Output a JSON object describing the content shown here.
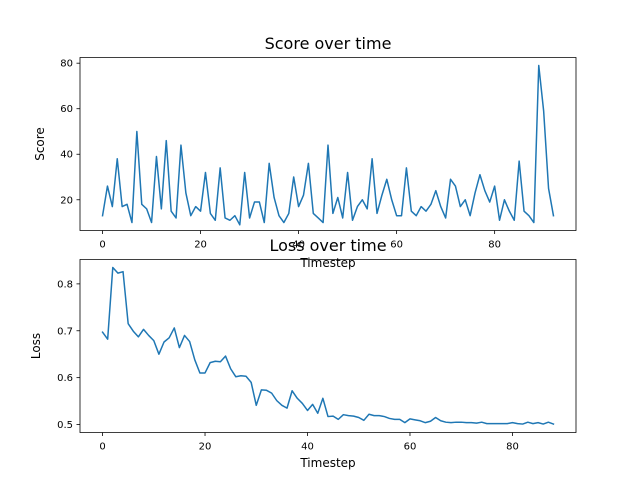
{
  "chart_data": [
    {
      "type": "line",
      "title": "Score over time",
      "xlabel": "Timestep",
      "ylabel": "Score",
      "xlim": [
        -4.6,
        96.6
      ],
      "ylim": [
        6.5,
        82.5
      ],
      "xticks": [
        0,
        20,
        40,
        60,
        80
      ],
      "yticks": [
        20,
        40,
        60,
        80
      ],
      "grid": false,
      "series": [
        {
          "color": "#1f77b4",
          "x": [
            0,
            1,
            2,
            3,
            4,
            5,
            6,
            7,
            8,
            9,
            10,
            11,
            12,
            13,
            14,
            15,
            16,
            17,
            18,
            19,
            20,
            21,
            22,
            23,
            24,
            25,
            26,
            27,
            28,
            29,
            30,
            31,
            32,
            33,
            34,
            35,
            36,
            37,
            38,
            39,
            40,
            41,
            42,
            43,
            44,
            45,
            46,
            47,
            48,
            49,
            50,
            51,
            52,
            53,
            54,
            55,
            56,
            57,
            58,
            59,
            60,
            61,
            62,
            63,
            64,
            65,
            66,
            67,
            68,
            69,
            70,
            71,
            72,
            73,
            74,
            75,
            76,
            77,
            78,
            79,
            80,
            81,
            82,
            83,
            84,
            85,
            86,
            87,
            88,
            89,
            90,
            91,
            92
          ],
          "y": [
            13,
            26,
            17,
            38,
            17,
            18,
            10,
            50,
            18,
            16,
            10,
            39,
            16,
            46,
            15,
            12,
            44,
            23,
            13,
            17,
            15,
            32,
            14,
            11,
            34,
            12,
            11,
            13,
            9,
            32,
            12,
            19,
            19,
            10,
            36,
            21,
            13,
            10,
            14,
            30,
            17,
            22,
            36,
            14,
            12,
            10,
            44,
            14,
            21,
            12,
            32,
            11,
            17,
            20,
            16,
            38,
            14,
            22,
            29,
            20,
            13,
            13,
            34,
            15,
            13,
            17,
            15,
            18,
            24,
            17,
            12,
            29,
            26,
            17,
            20,
            13,
            23,
            31,
            24,
            19,
            26,
            11,
            20,
            15,
            11,
            37,
            15,
            13,
            10,
            79,
            59,
            25,
            13
          ]
        }
      ]
    },
    {
      "type": "line",
      "title": "Loss over time",
      "xlabel": "Timestep",
      "ylabel": "Loss",
      "xlim": [
        -4.4,
        92.4
      ],
      "ylim": [
        0.483,
        0.852
      ],
      "xticks": [
        0,
        20,
        40,
        60,
        80
      ],
      "yticks": [
        0.5,
        0.6,
        0.7,
        0.8
      ],
      "grid": false,
      "series": [
        {
          "color": "#1f77b4",
          "x": [
            0,
            1,
            2,
            3,
            4,
            5,
            6,
            7,
            8,
            9,
            10,
            11,
            12,
            13,
            14,
            15,
            16,
            17,
            18,
            19,
            20,
            21,
            22,
            23,
            24,
            25,
            26,
            27,
            28,
            29,
            30,
            31,
            32,
            33,
            34,
            35,
            36,
            37,
            38,
            39,
            40,
            41,
            42,
            43,
            44,
            45,
            46,
            47,
            48,
            49,
            50,
            51,
            52,
            53,
            54,
            55,
            56,
            57,
            58,
            59,
            60,
            61,
            62,
            63,
            64,
            65,
            66,
            67,
            68,
            69,
            70,
            71,
            72,
            73,
            74,
            75,
            76,
            77,
            78,
            79,
            80,
            81,
            82,
            83,
            84,
            85,
            86,
            87,
            88
          ],
          "y": [
            0.697,
            0.682,
            0.835,
            0.823,
            0.826,
            0.715,
            0.699,
            0.687,
            0.703,
            0.69,
            0.679,
            0.65,
            0.676,
            0.685,
            0.706,
            0.664,
            0.69,
            0.677,
            0.638,
            0.61,
            0.61,
            0.632,
            0.635,
            0.634,
            0.646,
            0.619,
            0.602,
            0.604,
            0.603,
            0.59,
            0.541,
            0.574,
            0.573,
            0.567,
            0.551,
            0.541,
            0.535,
            0.572,
            0.556,
            0.545,
            0.53,
            0.543,
            0.524,
            0.556,
            0.517,
            0.518,
            0.511,
            0.521,
            0.519,
            0.518,
            0.515,
            0.509,
            0.522,
            0.519,
            0.519,
            0.517,
            0.513,
            0.511,
            0.511,
            0.504,
            0.512,
            0.51,
            0.508,
            0.504,
            0.507,
            0.515,
            0.508,
            0.505,
            0.504,
            0.505,
            0.505,
            0.504,
            0.504,
            0.503,
            0.505,
            0.502,
            0.502,
            0.502,
            0.502,
            0.502,
            0.504,
            0.502,
            0.501,
            0.505,
            0.502,
            0.504,
            0.501,
            0.505,
            0.501
          ]
        }
      ]
    }
  ]
}
